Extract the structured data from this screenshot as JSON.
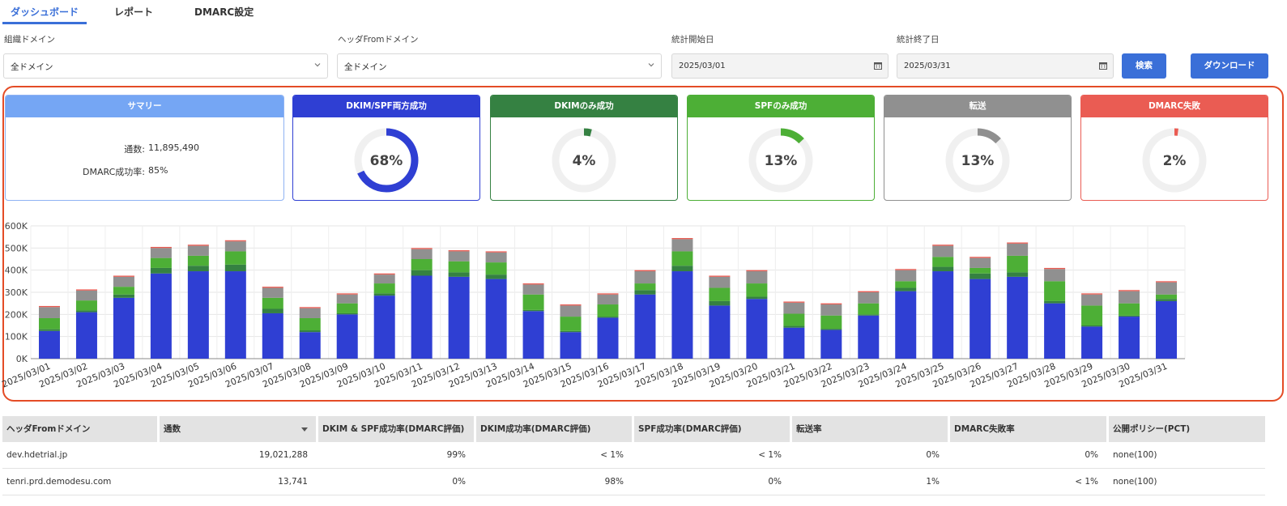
{
  "tabs": [
    {
      "label": "ダッシュボード",
      "active": true
    },
    {
      "label": "レポート",
      "active": false
    },
    {
      "label": "DMARC設定",
      "active": false
    }
  ],
  "filters": {
    "org_domain": {
      "label": "組織ドメイン",
      "value": "全ドメイン"
    },
    "header_from_domain": {
      "label": "ヘッダFromドメイン",
      "value": "全ドメイン"
    },
    "start_date": {
      "label": "統計開始日",
      "value": "2025/03/01"
    },
    "end_date": {
      "label": "統計終了日",
      "value": "2025/03/31"
    },
    "search_label": "検索",
    "download_label": "ダウンロード"
  },
  "summary": {
    "title": "サマリー",
    "count_label": "通数:",
    "count_value": "11,895,490",
    "rate_label": "DMARC成功率:",
    "rate_value": "85%"
  },
  "cards": [
    {
      "title": "DKIM/SPF両方成功",
      "pct_label": "68%",
      "pct": 68,
      "color": "#2f3fd3",
      "border": "#2f3fd3"
    },
    {
      "title": "DKIMのみ成功",
      "pct_label": "4%",
      "pct": 4,
      "color": "#358142",
      "border": "#358142"
    },
    {
      "title": "SPFのみ成功",
      "pct_label": "13%",
      "pct": 13,
      "color": "#4daf36",
      "border": "#4daf36"
    },
    {
      "title": "転送",
      "pct_label": "13%",
      "pct": 13,
      "color": "#909090",
      "border": "#909090"
    },
    {
      "title": "DMARC失敗",
      "pct_label": "2%",
      "pct": 2,
      "color": "#ea5c53",
      "border": "#ea5c53"
    }
  ],
  "chart_data": {
    "type": "bar",
    "stacked": true,
    "categories": [
      "2025/03/01",
      "2025/03/02",
      "2025/03/03",
      "2025/03/04",
      "2025/03/05",
      "2025/03/06",
      "2025/03/07",
      "2025/03/08",
      "2025/03/09",
      "2025/03/10",
      "2025/03/11",
      "2025/03/12",
      "2025/03/13",
      "2025/03/14",
      "2025/03/15",
      "2025/03/16",
      "2025/03/17",
      "2025/03/18",
      "2025/03/19",
      "2025/03/20",
      "2025/03/21",
      "2025/03/22",
      "2025/03/23",
      "2025/03/24",
      "2025/03/25",
      "2025/03/26",
      "2025/03/27",
      "2025/03/28",
      "2025/03/29",
      "2025/03/30",
      "2025/03/31"
    ],
    "series": [
      {
        "color": "#2f3fd3",
        "values": [
          125000,
          210000,
          275000,
          385000,
          395000,
          395000,
          205000,
          120000,
          200000,
          285000,
          375000,
          370000,
          360000,
          215000,
          120000,
          185000,
          290000,
          395000,
          240000,
          270000,
          140000,
          130000,
          195000,
          305000,
          395000,
          360000,
          370000,
          250000,
          145000,
          190000,
          260000
        ]
      },
      {
        "color": "#358142",
        "values": [
          8000,
          8000,
          15000,
          25000,
          25000,
          30000,
          20000,
          8000,
          5000,
          10000,
          25000,
          20000,
          20000,
          5000,
          5000,
          5000,
          20000,
          25000,
          20000,
          10000,
          8000,
          5000,
          5000,
          15000,
          20000,
          25000,
          20000,
          10000,
          5000,
          5000,
          10000
        ]
      },
      {
        "color": "#4daf36",
        "values": [
          50000,
          45000,
          35000,
          45000,
          45000,
          60000,
          50000,
          55000,
          45000,
          45000,
          50000,
          50000,
          55000,
          70000,
          65000,
          55000,
          30000,
          65000,
          60000,
          60000,
          55000,
          60000,
          50000,
          30000,
          45000,
          25000,
          75000,
          90000,
          90000,
          55000,
          20000
        ]
      },
      {
        "color": "#909090",
        "values": [
          50000,
          45000,
          45000,
          45000,
          45000,
          45000,
          45000,
          45000,
          40000,
          40000,
          45000,
          45000,
          45000,
          45000,
          50000,
          45000,
          55000,
          55000,
          50000,
          55000,
          50000,
          50000,
          50000,
          50000,
          50000,
          45000,
          55000,
          55000,
          50000,
          55000,
          55000
        ]
      },
      {
        "color": "#ea5c53",
        "values": [
          5000,
          5000,
          5000,
          5000,
          5000,
          5000,
          5000,
          5000,
          5000,
          5000,
          5000,
          5000,
          5000,
          5000,
          5000,
          5000,
          5000,
          5000,
          5000,
          5000,
          5000,
          5000,
          5000,
          5000,
          5000,
          5000,
          5000,
          5000,
          5000,
          5000,
          5000
        ]
      }
    ],
    "yticks": [
      "0K",
      "100K",
      "200K",
      "300K",
      "400K",
      "500K",
      "600K"
    ],
    "ylim": [
      0,
      600000
    ],
    "grid": true
  },
  "table": {
    "headers": [
      "ヘッダFromドメイン",
      "通数",
      "DKIM & SPF成功率(DMARC評価)",
      "DKIM成功率(DMARC評価)",
      "SPF成功率(DMARC評価)",
      "転送率",
      "DMARC失敗率",
      "公開ポリシー(PCT)"
    ],
    "rows": [
      [
        "dev.hdetrial.jp",
        "19,021,288",
        "99%",
        "< 1%",
        "< 1%",
        "0%",
        "0%",
        "none(100)"
      ],
      [
        "tenri.prd.demodesu.com",
        "13,741",
        "0%",
        "98%",
        "0%",
        "1%",
        "< 1%",
        "none(100)"
      ]
    ]
  },
  "icons": {
    "chevron": "chevron-down-icon",
    "calendar": "calendar-icon",
    "sort": "sort-desc-icon"
  }
}
